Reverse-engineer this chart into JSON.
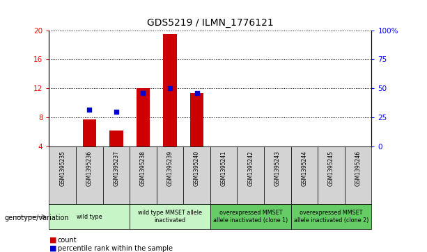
{
  "title": "GDS5219 / ILMN_1776121",
  "samples": [
    "GSM1395235",
    "GSM1395236",
    "GSM1395237",
    "GSM1395238",
    "GSM1395239",
    "GSM1395240",
    "GSM1395241",
    "GSM1395242",
    "GSM1395243",
    "GSM1395244",
    "GSM1395245",
    "GSM1395246"
  ],
  "count_values": [
    4,
    7.7,
    6.2,
    12.0,
    19.5,
    11.3,
    4,
    4,
    4,
    4,
    4,
    4
  ],
  "percentile_values": [
    null,
    9.0,
    8.7,
    11.3,
    12.0,
    11.3,
    null,
    null,
    null,
    null,
    null,
    null
  ],
  "ylim_left": [
    4,
    20
  ],
  "ylim_right": [
    0,
    100
  ],
  "yticks_left": [
    4,
    8,
    12,
    16,
    20
  ],
  "yticks_right": [
    0,
    25,
    50,
    75,
    100
  ],
  "yticklabels_right": [
    "0",
    "25",
    "50",
    "75",
    "100%"
  ],
  "bar_color": "#cc0000",
  "scatter_color": "#0000cc",
  "groups": [
    {
      "label": "wild type",
      "start": 0,
      "end": 3,
      "color": "#c8f5c8"
    },
    {
      "label": "wild type MMSET allele\ninactivated",
      "start": 3,
      "end": 6,
      "color": "#c8f5c8"
    },
    {
      "label": "overexpressed MMSET\nallele inactivated (clone 1)",
      "start": 6,
      "end": 9,
      "color": "#66cc66"
    },
    {
      "label": "overexpressed MMSET\nallele inactivated (clone 2)",
      "start": 9,
      "end": 12,
      "color": "#66cc66"
    }
  ],
  "xlabel_row_label": "genotype/variation",
  "legend_count": "count",
  "legend_percentile": "percentile rank within the sample",
  "title_fontsize": 10
}
